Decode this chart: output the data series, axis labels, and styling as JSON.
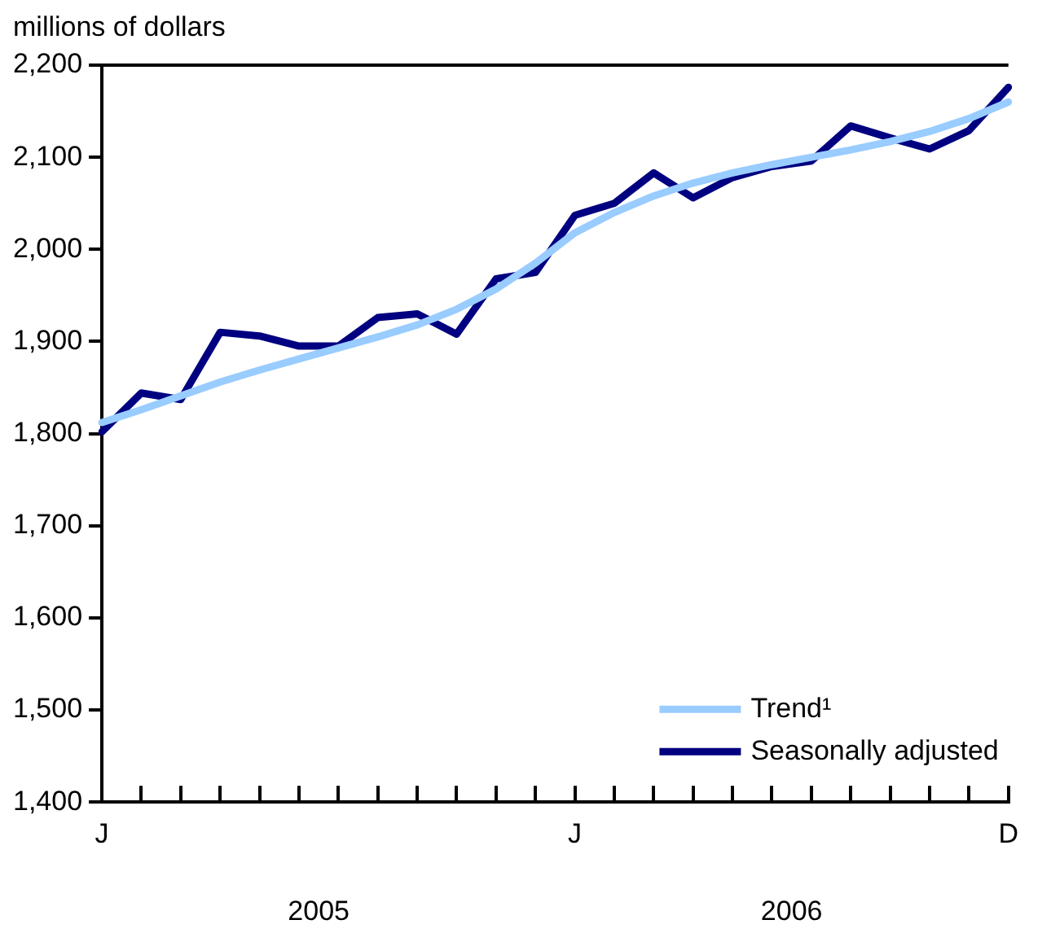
{
  "chart_data": {
    "type": "line",
    "ylabel": "millions of dollars",
    "categories": [
      "J",
      null,
      null,
      null,
      null,
      null,
      null,
      null,
      null,
      null,
      null,
      null,
      "J",
      null,
      null,
      null,
      null,
      null,
      null,
      null,
      null,
      null,
      null,
      "D"
    ],
    "series": [
      {
        "name": "Trend¹",
        "color": "#99ccff",
        "values": [
          1812,
          1826,
          1841,
          1856,
          1869,
          1881,
          1893,
          1905,
          1918,
          1935,
          1957,
          1985,
          2018,
          2040,
          2058,
          2072,
          2083,
          2092,
          2100,
          2108,
          2117,
          2128,
          2142,
          2160
        ]
      },
      {
        "name": "Seasonally adjusted",
        "color": "#000080",
        "values": [
          1802,
          1844,
          1837,
          1910,
          1906,
          1895,
          1895,
          1926,
          1930,
          1908,
          1968,
          1975,
          2037,
          2050,
          2083,
          2056,
          2078,
          2090,
          2096,
          2134,
          2121,
          2109,
          2129,
          2176
        ]
      }
    ],
    "ylim": [
      1400,
      2200
    ],
    "yticks": [
      {
        "value": 1400,
        "label": "1,400"
      },
      {
        "value": 1500,
        "label": "1,500"
      },
      {
        "value": 1600,
        "label": "1,600"
      },
      {
        "value": 1700,
        "label": "1,700"
      },
      {
        "value": 1800,
        "label": "1,800"
      },
      {
        "value": 1900,
        "label": "1,900"
      },
      {
        "value": 2000,
        "label": "2,000"
      },
      {
        "value": 2100,
        "label": "2,100"
      },
      {
        "value": 2200,
        "label": "2,200"
      }
    ],
    "annotations": [
      "2005",
      "2006"
    ],
    "grid": false,
    "legend": "bottom right",
    "marker": "none",
    "line_style": "solid"
  }
}
